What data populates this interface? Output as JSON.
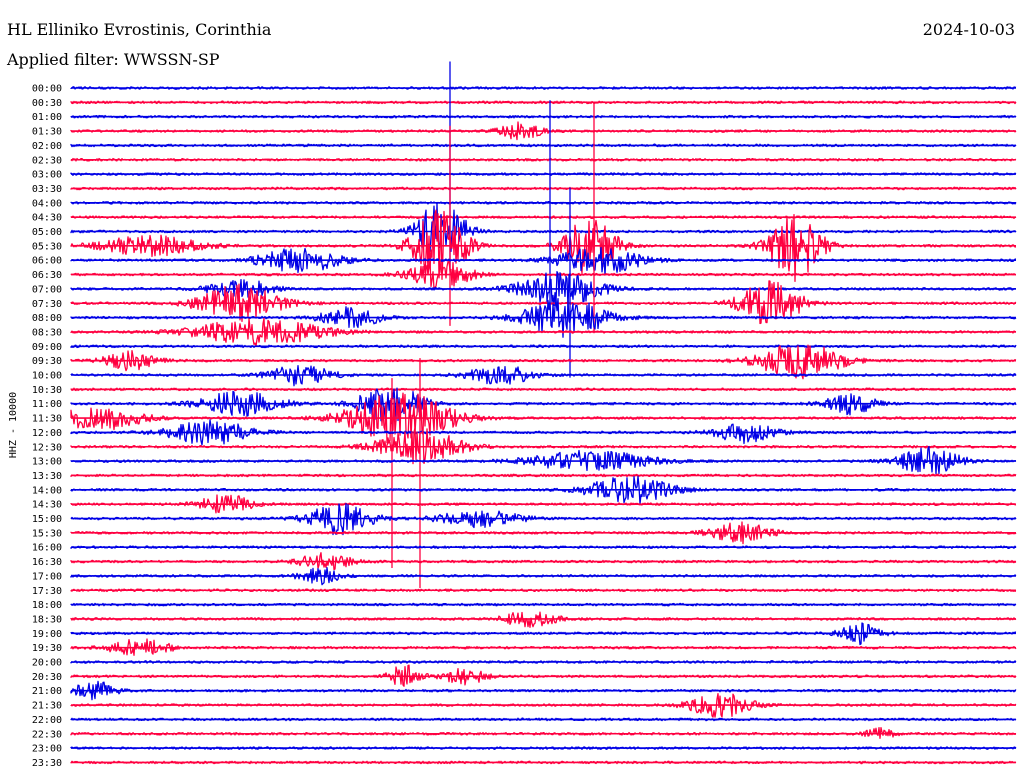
{
  "header": {
    "station": "HL Elliniko Evrostinis, Corinthia",
    "date": "2024-10-03",
    "filter": "Applied filter: WWSSN-SP"
  },
  "chart_data": {
    "type": "line",
    "ylabel": "HHZ - 10000",
    "rows": [
      "00:00",
      "00:30",
      "01:00",
      "01:30",
      "02:00",
      "02:30",
      "03:00",
      "03:30",
      "04:00",
      "04:30",
      "05:00",
      "05:30",
      "06:00",
      "06:30",
      "07:00",
      "07:30",
      "08:00",
      "08:30",
      "09:00",
      "09:30",
      "10:00",
      "10:30",
      "11:00",
      "11:30",
      "12:00",
      "12:30",
      "13:00",
      "13:30",
      "14:00",
      "14:30",
      "15:00",
      "15:30",
      "16:00",
      "16:30",
      "17:00",
      "17:30",
      "18:00",
      "18:30",
      "19:00",
      "19:30",
      "20:00",
      "20:30",
      "21:00",
      "21:30",
      "22:00",
      "22:30",
      "23:00",
      "23:30"
    ],
    "colors": {
      "even": "#0000e6",
      "odd": "#ff0040"
    }
  }
}
